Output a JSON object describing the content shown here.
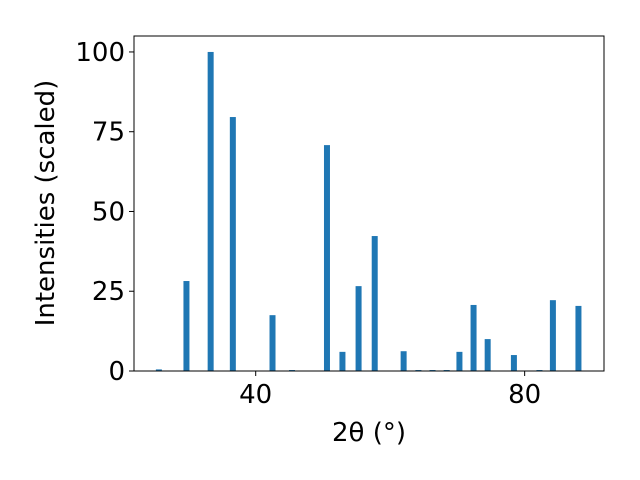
{
  "chart_data": {
    "type": "bar",
    "xlabel": "2θ (°)",
    "ylabel": "Intensities (scaled)",
    "x": [
      25.6,
      29.7,
      33.3,
      36.6,
      42.5,
      45.4,
      50.6,
      52.9,
      55.3,
      57.7,
      62.0,
      64.2,
      66.3,
      68.4,
      70.3,
      72.4,
      74.5,
      78.4,
      82.2,
      84.2,
      88.0
    ],
    "values": [
      0.5,
      28.2,
      100,
      79.6,
      17.5,
      0.3,
      70.8,
      6,
      26.6,
      42.3,
      6.2,
      0.3,
      0.3,
      0.3,
      6,
      20.7,
      10,
      5,
      0.3,
      22.2,
      20.4
    ],
    "color": "#1f77b4",
    "xlim": [
      21.9,
      91.8
    ],
    "xticks": [
      40,
      80
    ],
    "ylim": [
      0,
      105
    ],
    "yticks": [
      0,
      25,
      50,
      75,
      100
    ]
  }
}
